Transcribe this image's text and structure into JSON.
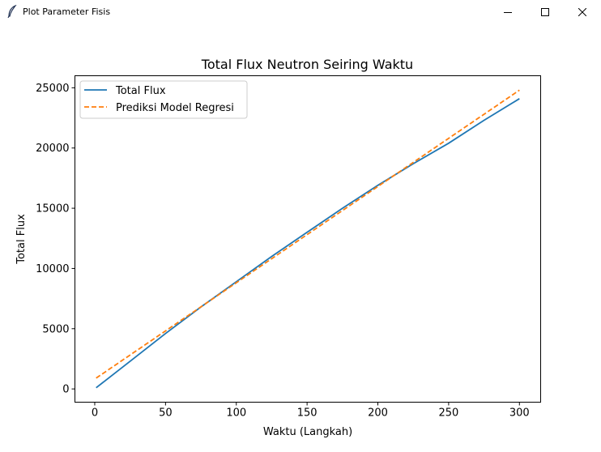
{
  "window": {
    "title": "Plot Parameter Fisis",
    "icons": {
      "app": "feather-icon",
      "minimize": "minimize-icon",
      "maximize": "maximize-icon",
      "close": "close-icon"
    }
  },
  "chart_data": {
    "type": "line",
    "title": "Total Flux Neutron Seiring Waktu",
    "xlabel": "Waktu (Langkah)",
    "ylabel": "Total Flux",
    "xlim": [
      -14,
      315
    ],
    "ylim": [
      -1100,
      26000
    ],
    "xticks": [
      0,
      50,
      100,
      150,
      200,
      250,
      300
    ],
    "yticks": [
      0,
      5000,
      10000,
      15000,
      20000,
      25000
    ],
    "grid": false,
    "legend_position": "upper-left",
    "series": [
      {
        "name": "Total Flux",
        "color": "#1f77b4",
        "style": "solid",
        "x": [
          1,
          25,
          50,
          75,
          100,
          125,
          150,
          175,
          200,
          225,
          250,
          275,
          300
        ],
        "y": [
          100,
          2300,
          4600,
          6800,
          8900,
          11000,
          13000,
          15000,
          16900,
          18700,
          20400,
          22300,
          24100
        ]
      },
      {
        "name": "Prediksi Model Regresi",
        "color": "#ff7f0e",
        "style": "dashed",
        "x": [
          1,
          300
        ],
        "y": [
          900,
          24800
        ]
      }
    ]
  }
}
